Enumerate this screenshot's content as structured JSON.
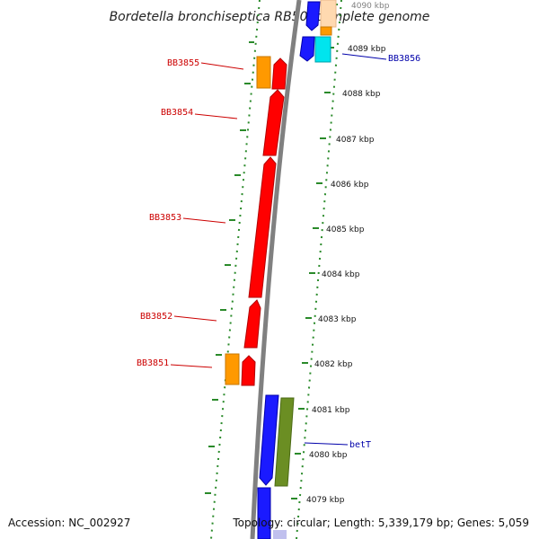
{
  "title": "Bordetella bronchiseptica RB50, complete genome",
  "footer": {
    "accession": "Accession: NC_002927",
    "topology": "Topology: circular; Length: 5,339,179 bp; Genes: 5,059"
  },
  "colors": {
    "backbone": "#808080",
    "scale_dots": "#2a8a2a",
    "label_forward": "#cc0000",
    "label_reverse": "#0000aa"
  },
  "ticks": [
    {
      "label": "4090 kbp"
    },
    {
      "label": "4089 kbp"
    },
    {
      "label": "4088 kbp"
    },
    {
      "label": "4087 kbp"
    },
    {
      "label": "4086 kbp"
    },
    {
      "label": "4085 kbp"
    },
    {
      "label": "4084 kbp"
    },
    {
      "label": "4083 kbp"
    },
    {
      "label": "4082 kbp"
    },
    {
      "label": "4081 kbp"
    },
    {
      "label": "4080 kbp"
    },
    {
      "label": "4079 kbp"
    }
  ],
  "gene_labels": [
    {
      "name": "BB3855",
      "side": "left"
    },
    {
      "name": "BB3854",
      "side": "left"
    },
    {
      "name": "BB3853",
      "side": "left"
    },
    {
      "name": "BB3852",
      "side": "left"
    },
    {
      "name": "BB3851",
      "side": "left"
    },
    {
      "name": "BB3856",
      "side": "right"
    },
    {
      "name": "betT",
      "side": "right"
    }
  ]
}
